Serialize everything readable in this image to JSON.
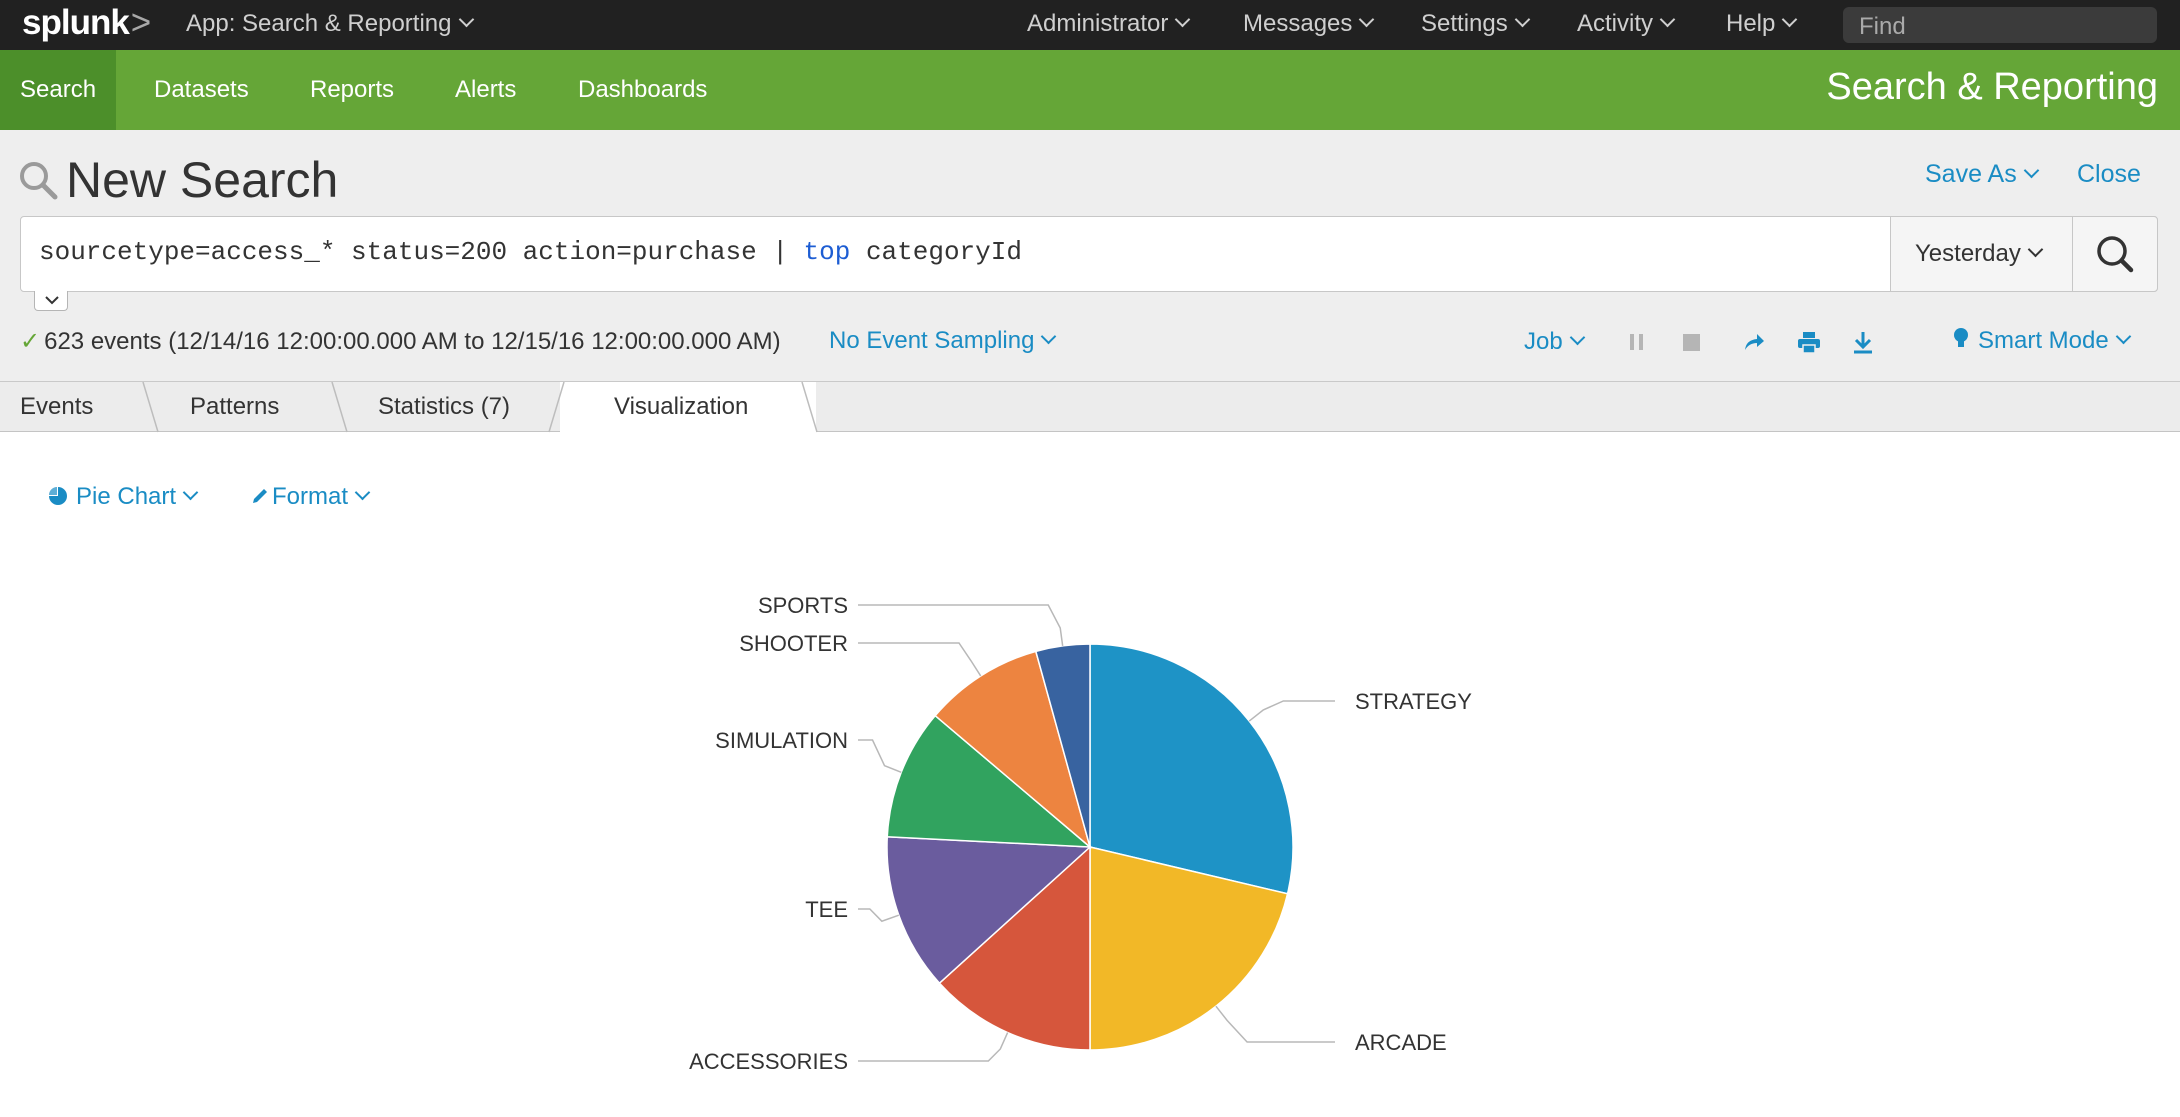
{
  "topbar": {
    "logo": "splunk",
    "logo_suffix": ">",
    "app_menu": "App: Search & Reporting",
    "menus": [
      "Administrator",
      "Messages",
      "Settings",
      "Activity",
      "Help"
    ],
    "find_placeholder": "Find"
  },
  "appbar": {
    "nav": [
      "Search",
      "Datasets",
      "Reports",
      "Alerts",
      "Dashboards"
    ],
    "title": "Search & Reporting"
  },
  "search": {
    "title": "New Search",
    "save_as": "Save As",
    "close": "Close",
    "query_pre": "sourcetype=access_* status=200 action=purchase | ",
    "query_kw": "top",
    "query_post": " categoryId",
    "time_range": "Yesterday",
    "status_text": "623 events (12/14/16 12:00:00.000 AM to 12/15/16 12:00:00.000 AM)",
    "sampling": "No Event Sampling",
    "job": "Job",
    "mode": "Smart Mode"
  },
  "tabs": [
    "Events",
    "Patterns",
    "Statistics (7)",
    "Visualization"
  ],
  "viz_controls": {
    "chart_type": "Pie Chart",
    "format": "Format"
  },
  "colors": {
    "accent": "#1a8cc4",
    "appbar": "#65a637"
  },
  "chart_data": {
    "type": "pie",
    "slices": [
      {
        "label": "STRATEGY",
        "value": 28.7,
        "color": "#1e93c6"
      },
      {
        "label": "ARCADE",
        "value": 21.3,
        "color": "#f2b827"
      },
      {
        "label": "ACCESSORIES",
        "value": 13.3,
        "color": "#d6563c"
      },
      {
        "label": "TEE",
        "value": 12.5,
        "color": "#6a5c9e"
      },
      {
        "label": "SIMULATION",
        "value": 10.4,
        "color": "#31a35f"
      },
      {
        "label": "SHOOTER",
        "value": 9.5,
        "color": "#ed8440"
      },
      {
        "label": "SPORTS",
        "value": 4.3,
        "color": "#3863a0"
      }
    ]
  }
}
